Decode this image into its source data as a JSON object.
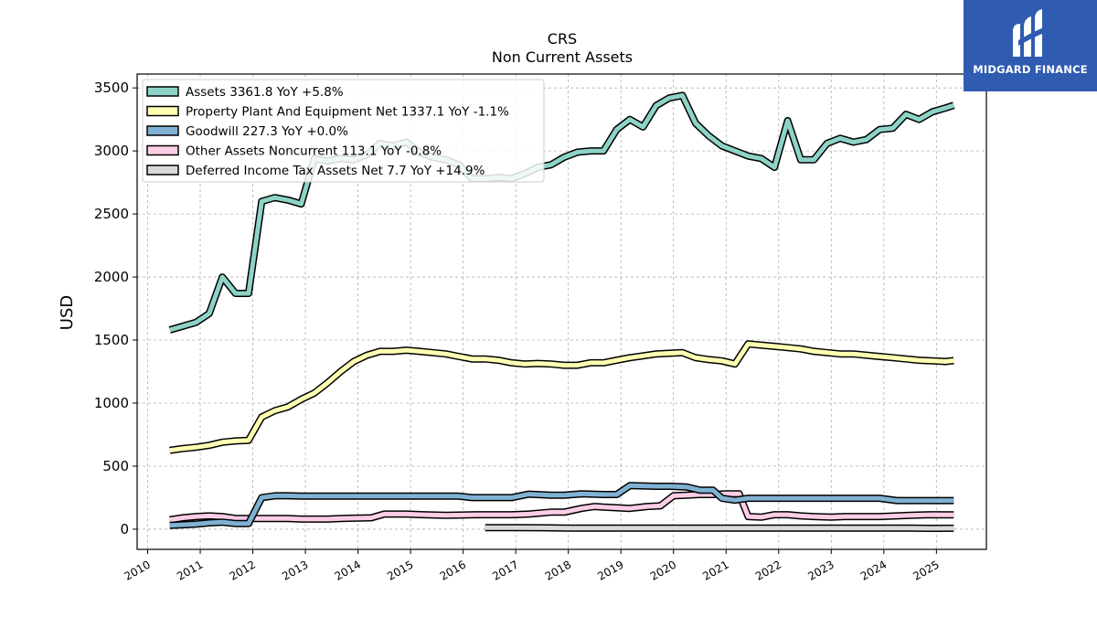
{
  "logo": {
    "text": "MIDGARD FINANCE",
    "icon": "midgard-logo-icon",
    "color": "#2f5bb0"
  },
  "chart_data": {
    "type": "line",
    "title": "CRS",
    "subtitle": "Non Current  Assets",
    "ylabel": "USD",
    "xlabel": "",
    "xlim": [
      2009.8,
      2025.95
    ],
    "ylim": [
      -160,
      3610
    ],
    "yticks": [
      0,
      500,
      1000,
      1500,
      2000,
      2500,
      3000,
      3500
    ],
    "xticks": [
      "2010",
      "2011",
      "2012",
      "2013",
      "2014",
      "2015",
      "2016",
      "2017",
      "2018",
      "2019",
      "2020",
      "2021",
      "2022",
      "2023",
      "2024",
      "2025"
    ],
    "grid": true,
    "legend_position": "top-left",
    "series": [
      {
        "name": "Assets",
        "legend": "Assets  3361.8 YoY +5.8%",
        "color": "#8dd3c7",
        "x": [
          2010.42,
          2010.67,
          2010.92,
          2011.17,
          2011.42,
          2011.67,
          2011.92,
          2012.17,
          2012.42,
          2012.67,
          2012.92,
          2013.17,
          2013.42,
          2013.67,
          2013.92,
          2014.17,
          2014.42,
          2014.67,
          2014.92,
          2015.17,
          2015.42,
          2015.67,
          2015.92,
          2016.17,
          2016.42,
          2016.67,
          2016.92,
          2017.17,
          2017.42,
          2017.67,
          2017.92,
          2018.17,
          2018.42,
          2018.67,
          2018.92,
          2019.17,
          2019.42,
          2019.67,
          2019.92,
          2020.17,
          2020.42,
          2020.67,
          2020.92,
          2021.17,
          2021.42,
          2021.67,
          2021.92,
          2022.17,
          2022.42,
          2022.67,
          2022.92,
          2023.17,
          2023.42,
          2023.67,
          2023.92,
          2024.17,
          2024.42,
          2024.67,
          2024.92,
          2025.17,
          2025.33
        ],
        "values": [
          1580,
          1610,
          1640,
          1710,
          2000,
          1870,
          1870,
          2600,
          2630,
          2610,
          2580,
          2940,
          2920,
          2940,
          2930,
          2970,
          3060,
          3040,
          3070,
          2990,
          2950,
          2930,
          2890,
          2780,
          2780,
          2790,
          2780,
          2820,
          2870,
          2890,
          2950,
          2990,
          3000,
          3000,
          3170,
          3250,
          3190,
          3360,
          3420,
          3440,
          3220,
          3120,
          3040,
          3000,
          2960,
          2940,
          2870,
          3240,
          2930,
          2930,
          3060,
          3100,
          3070,
          3090,
          3170,
          3180,
          3290,
          3250,
          3310,
          3340,
          3362
        ]
      },
      {
        "name": "Property Plant And Equipment Net",
        "legend": "Property Plant And Equipment Net  1337.1 YoY -1.1%",
        "color": "#ffffb3",
        "x": [
          2010.42,
          2010.67,
          2010.92,
          2011.17,
          2011.42,
          2011.67,
          2011.92,
          2012.17,
          2012.42,
          2012.67,
          2012.92,
          2013.17,
          2013.42,
          2013.67,
          2013.92,
          2014.17,
          2014.42,
          2014.67,
          2014.92,
          2015.17,
          2015.42,
          2015.67,
          2015.92,
          2016.17,
          2016.42,
          2016.67,
          2016.92,
          2017.17,
          2017.42,
          2017.67,
          2017.92,
          2018.17,
          2018.42,
          2018.67,
          2018.92,
          2019.17,
          2019.42,
          2019.67,
          2019.92,
          2020.17,
          2020.42,
          2020.67,
          2020.92,
          2021.17,
          2021.42,
          2021.67,
          2021.92,
          2022.17,
          2022.42,
          2022.67,
          2022.92,
          2023.17,
          2023.42,
          2023.67,
          2023.92,
          2024.17,
          2024.42,
          2024.67,
          2024.92,
          2025.17,
          2025.33
        ],
        "values": [
          625,
          640,
          650,
          665,
          690,
          700,
          705,
          890,
          940,
          970,
          1030,
          1080,
          1160,
          1250,
          1330,
          1380,
          1410,
          1410,
          1420,
          1410,
          1400,
          1390,
          1370,
          1350,
          1350,
          1340,
          1320,
          1310,
          1315,
          1310,
          1300,
          1300,
          1320,
          1320,
          1340,
          1360,
          1375,
          1390,
          1395,
          1400,
          1360,
          1345,
          1335,
          1310,
          1470,
          1460,
          1450,
          1440,
          1430,
          1410,
          1400,
          1390,
          1390,
          1380,
          1370,
          1360,
          1350,
          1340,
          1335,
          1330,
          1337
        ]
      },
      {
        "name": "Goodwill",
        "legend": "Goodwill  227.3 YoY +0.0%",
        "color": "#80b1d3",
        "x": [
          2010.42,
          2010.67,
          2010.92,
          2011.17,
          2011.42,
          2011.67,
          2011.92,
          2012.17,
          2012.42,
          2012.67,
          2012.92,
          2013.42,
          2013.92,
          2014.42,
          2014.92,
          2015.42,
          2015.92,
          2016.17,
          2016.92,
          2017.25,
          2017.67,
          2017.92,
          2018.25,
          2018.67,
          2018.92,
          2019.17,
          2019.67,
          2019.92,
          2020.25,
          2020.5,
          2020.75,
          2020.92,
          2021.17,
          2021.42,
          2021.67,
          2022.67,
          2023.92,
          2024.25,
          2025.33
        ],
        "values": [
          30,
          35,
          40,
          50,
          55,
          45,
          45,
          250,
          265,
          265,
          262,
          262,
          262,
          262,
          262,
          262,
          262,
          250,
          250,
          278,
          270,
          270,
          280,
          275,
          275,
          345,
          340,
          340,
          335,
          310,
          310,
          245,
          230,
          245,
          245,
          245,
          245,
          227,
          227
        ]
      },
      {
        "name": "Other Assets Noncurrent",
        "legend": "Other Assets Noncurrent  113.1 YoY -0.8%",
        "color": "#fccde5",
        "x": [
          2010.42,
          2010.67,
          2010.92,
          2011.17,
          2011.42,
          2011.67,
          2011.92,
          2012.17,
          2012.42,
          2012.67,
          2012.92,
          2013.42,
          2013.67,
          2014.25,
          2014.5,
          2014.92,
          2015.25,
          2015.67,
          2016.25,
          2016.92,
          2017.25,
          2017.67,
          2017.92,
          2018.25,
          2018.5,
          2018.67,
          2018.92,
          2019.17,
          2019.5,
          2019.75,
          2020.0,
          2020.25,
          2020.5,
          2020.75,
          2021.0,
          2021.25,
          2021.42,
          2021.67,
          2021.92,
          2022.17,
          2022.42,
          2022.67,
          2023.0,
          2023.25,
          2023.5,
          2023.92,
          2024.25,
          2024.5,
          2024.92,
          2025.33
        ],
        "values": [
          75,
          90,
          100,
          105,
          100,
          85,
          85,
          85,
          85,
          85,
          80,
          80,
          85,
          90,
          120,
          120,
          115,
          110,
          115,
          115,
          120,
          135,
          135,
          165,
          180,
          175,
          170,
          165,
          180,
          185,
          265,
          270,
          275,
          275,
          280,
          280,
          100,
          95,
          115,
          115,
          105,
          100,
          95,
          100,
          100,
          100,
          105,
          110,
          115,
          113
        ]
      },
      {
        "name": "Deferred Income Tax Assets Net",
        "legend": "Deferred Income Tax Assets Net  7.7 YoY +14.9%",
        "color": "#d9d9d9",
        "x": [
          2016.42,
          2017.0,
          2017.5,
          2018.0,
          2018.5,
          2019.0,
          2019.5,
          2020.0,
          2020.5,
          2021.0,
          2021.5,
          2022.0,
          2022.5,
          2023.0,
          2023.5,
          2024.0,
          2024.5,
          2025.0,
          2025.33
        ],
        "values": [
          12,
          12,
          11,
          9,
          8,
          9,
          8,
          8,
          8,
          9,
          9,
          9,
          8,
          8,
          8,
          8,
          8,
          7,
          7.7
        ]
      }
    ]
  }
}
